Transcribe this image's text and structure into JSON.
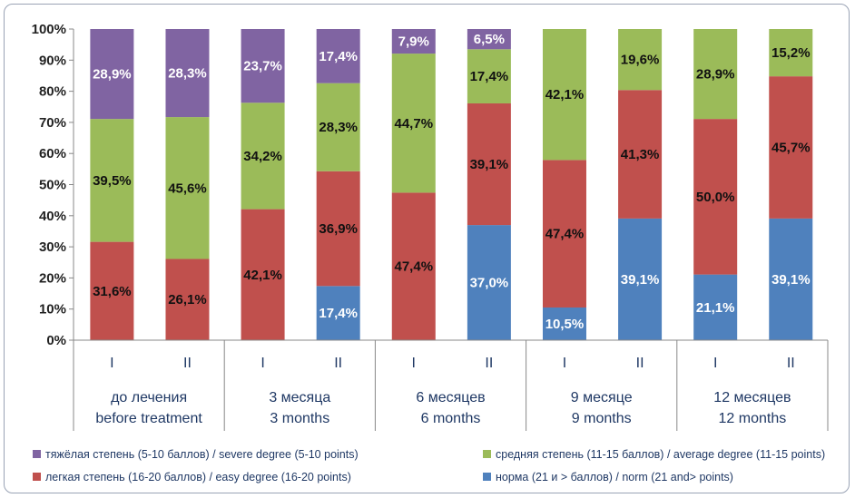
{
  "chart_data": {
    "type": "bar",
    "stacked": true,
    "percent": true,
    "ylim": [
      0,
      100
    ],
    "y_ticks": [
      "0%",
      "10%",
      "20%",
      "30%",
      "40%",
      "50%",
      "60%",
      "70%",
      "80%",
      "90%",
      "100%"
    ],
    "groups": [
      {
        "label_ru": "до лечения",
        "label_en": "before treatment",
        "subs": [
          "I",
          "II"
        ]
      },
      {
        "label_ru": "3 месяца",
        "label_en": "3 months",
        "subs": [
          "I",
          "II"
        ]
      },
      {
        "label_ru": "6 месяцев",
        "label_en": "6 months",
        "subs": [
          "I",
          "II"
        ]
      },
      {
        "label_ru": "9 месяце",
        "label_en": "9 months",
        "subs": [
          "I",
          "II"
        ]
      },
      {
        "label_ru": "12 месяцев",
        "label_en": "12 months",
        "subs": [
          "I",
          "II"
        ]
      }
    ],
    "series": [
      {
        "name": "норма (21 и > баллов) / norm (21 and> points)",
        "color": "#4f81bd",
        "label_color": "#ffffff",
        "values": [
          0,
          0,
          0,
          17.4,
          0,
          37.0,
          10.5,
          39.1,
          21.1,
          39.1
        ],
        "labels": [
          "",
          "",
          "",
          "17,4%",
          "",
          "37,0%",
          "10,5%",
          "39,1%",
          "21,1%",
          "39,1%"
        ]
      },
      {
        "name": "легкая степень (16-20 баллов) / easy degree (16-20 points)",
        "color": "#c0504d",
        "label_color": "#111111",
        "values": [
          31.6,
          26.1,
          42.1,
          36.9,
          47.4,
          39.1,
          47.4,
          41.3,
          50.0,
          45.7
        ],
        "labels": [
          "31,6%",
          "26,1%",
          "42,1%",
          "36,9%",
          "47,4%",
          "39,1%",
          "47,4%",
          "41,3%",
          "50,0%",
          "45,7%"
        ]
      },
      {
        "name": "средняя степень (11-15 баллов) / average degree (11-15 points)",
        "color": "#9bbb59",
        "label_color": "#111111",
        "values": [
          39.5,
          45.6,
          34.2,
          28.3,
          44.7,
          17.4,
          42.1,
          19.6,
          28.9,
          15.2
        ],
        "labels": [
          "39,5%",
          "45,6%",
          "34,2%",
          "28,3%",
          "44,7%",
          "17,4%",
          "42,1%",
          "19,6%",
          "28,9%",
          "15,2%"
        ]
      },
      {
        "name": "тяжёлая степень (5-10 баллов) / severe degree (5-10 points)",
        "color": "#8064a2",
        "label_color": "#ffffff",
        "values": [
          28.9,
          28.3,
          23.7,
          17.4,
          7.9,
          6.5,
          0,
          0,
          0,
          0
        ],
        "labels": [
          "28,9%",
          "28,3%",
          "23,7%",
          "17,4%",
          "7,9%",
          "6,5%",
          "",
          "",
          "",
          ""
        ]
      }
    ],
    "legend": [
      {
        "text": "тяжёлая степень (5-10 баллов) / severe degree (5-10 points)",
        "color": "#8064a2"
      },
      {
        "text": "средняя степень (11-15 баллов) / average degree (11-15 points)",
        "color": "#9bbb59"
      },
      {
        "text": "легкая степень (16-20 баллов) / easy degree (16-20 points)",
        "color": "#c0504d"
      },
      {
        "text": "норма (21 и > баллов) / norm (21 and> points)",
        "color": "#4f81bd"
      }
    ],
    "legend_position": "bottom",
    "grid": false
  }
}
